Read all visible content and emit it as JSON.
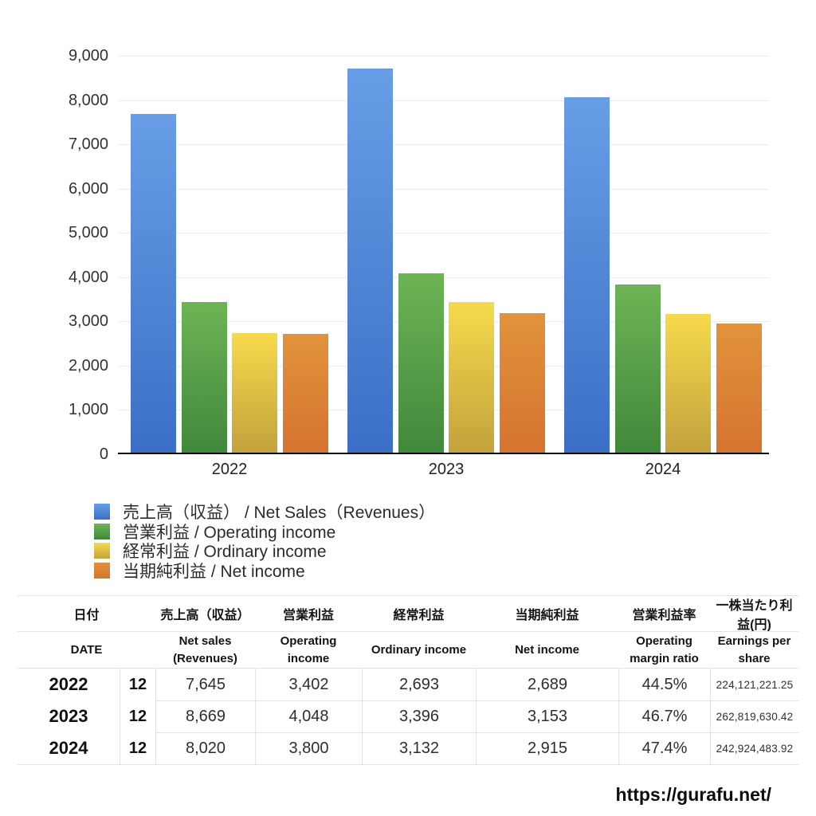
{
  "chart_data": {
    "type": "bar",
    "title": "",
    "xlabel": "",
    "ylabel": "",
    "categories": [
      "2022",
      "2023",
      "2024"
    ],
    "series": [
      {
        "name": "売上高（収益） / Net Sales（Revenues）",
        "values": [
          7645,
          8669,
          8020
        ],
        "color_top": "#689ee6",
        "color_bottom": "#3b6fc7"
      },
      {
        "name": "営業利益 / Operating income",
        "values": [
          3402,
          4048,
          3800
        ],
        "color_top": "#6db455",
        "color_bottom": "#41883c"
      },
      {
        "name": "経常利益 / Ordinary income",
        "values": [
          2693,
          3396,
          3132
        ],
        "color_top": "#f6da4c",
        "color_bottom": "#c2a23c"
      },
      {
        "name": "当期純利益 / Net income",
        "values": [
          2689,
          3153,
          2915
        ],
        "color_top": "#e2923c",
        "color_bottom": "#d4742f"
      }
    ],
    "ylim": [
      0,
      9000
    ],
    "ytick_step": 1000,
    "ytick_labels": [
      "0",
      "1,000",
      "2,000",
      "3,000",
      "4,000",
      "5,000",
      "6,000",
      "7,000",
      "8,000",
      "9,000"
    ],
    "grid": true,
    "legend_position": "bottom-left"
  },
  "table": {
    "header_row1": [
      "日付",
      "売上高（収益）",
      "営業利益",
      "経常利益",
      "当期純利益",
      "営業利益率",
      "一株当たり利益(円)"
    ],
    "header_row2": [
      [
        "DATE"
      ],
      [
        "Net sales",
        "(Revenues)"
      ],
      [
        "Operating",
        "income"
      ],
      [
        "Ordinary income"
      ],
      [
        "Net income"
      ],
      [
        "Operating",
        "margin ratio"
      ],
      [
        "Earnings per",
        "share"
      ]
    ],
    "rows": [
      {
        "year": "2022",
        "month": "12",
        "net_sales": "7,645",
        "operating_income": "3,402",
        "ordinary_income": "2,693",
        "net_income": "2,689",
        "operating_margin": "44.5%",
        "eps": "224,121,221.25"
      },
      {
        "year": "2023",
        "month": "12",
        "net_sales": "8,669",
        "operating_income": "4,048",
        "ordinary_income": "3,396",
        "net_income": "3,153",
        "operating_margin": "46.7%",
        "eps": "262,819,630.42"
      },
      {
        "year": "2024",
        "month": "12",
        "net_sales": "8,020",
        "operating_income": "3,800",
        "ordinary_income": "3,132",
        "net_income": "2,915",
        "operating_margin": "47.4%",
        "eps": "242,924,483.92"
      }
    ]
  },
  "footer": {
    "url": "https://gurafu.net/"
  }
}
